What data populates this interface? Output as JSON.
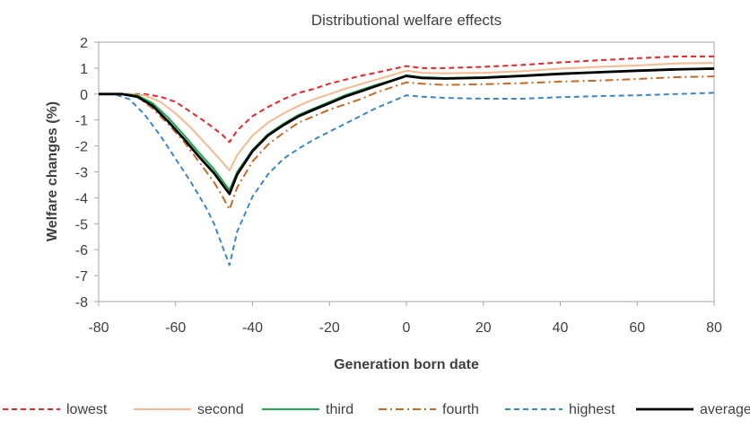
{
  "chart_data": {
    "type": "line",
    "title": "Distributional welfare effects",
    "xlabel": "Generation born date",
    "ylabel": "Welfare changes (%)",
    "xlim": [
      -80,
      80
    ],
    "ylim": [
      -8,
      2
    ],
    "x_ticks": [
      -80,
      -60,
      -40,
      -20,
      0,
      20,
      40,
      60,
      80
    ],
    "y_ticks": [
      -8,
      -7,
      -6,
      -5,
      -4,
      -3,
      -2,
      -1,
      0,
      1,
      2
    ],
    "grid": false,
    "legend_position": "bottom",
    "series": [
      {
        "name": "lowest",
        "color": "#e8262a",
        "style": "dashed",
        "points": [
          [
            -80,
            0
          ],
          [
            -72,
            0
          ],
          [
            -68,
            0
          ],
          [
            -64,
            -0.1
          ],
          [
            -60,
            -0.3
          ],
          [
            -56,
            -0.7
          ],
          [
            -52,
            -1.1
          ],
          [
            -48,
            -1.55
          ],
          [
            -46,
            -1.85
          ],
          [
            -44,
            -1.4
          ],
          [
            -40,
            -0.85
          ],
          [
            -36,
            -0.5
          ],
          [
            -32,
            -0.2
          ],
          [
            -28,
            0.05
          ],
          [
            -24,
            0.2
          ],
          [
            -20,
            0.4
          ],
          [
            -16,
            0.55
          ],
          [
            -12,
            0.7
          ],
          [
            -8,
            0.82
          ],
          [
            -4,
            0.95
          ],
          [
            0,
            1.08
          ],
          [
            4,
            1.0
          ],
          [
            10,
            1.0
          ],
          [
            20,
            1.05
          ],
          [
            30,
            1.12
          ],
          [
            40,
            1.22
          ],
          [
            50,
            1.3
          ],
          [
            60,
            1.38
          ],
          [
            70,
            1.45
          ],
          [
            80,
            1.45
          ]
        ]
      },
      {
        "name": "second",
        "color": "#f7b98f",
        "style": "solid",
        "points": [
          [
            -80,
            0
          ],
          [
            -72,
            0
          ],
          [
            -68,
            -0.05
          ],
          [
            -64,
            -0.3
          ],
          [
            -60,
            -0.75
          ],
          [
            -56,
            -1.3
          ],
          [
            -52,
            -1.95
          ],
          [
            -48,
            -2.6
          ],
          [
            -46,
            -2.95
          ],
          [
            -44,
            -2.35
          ],
          [
            -40,
            -1.6
          ],
          [
            -36,
            -1.1
          ],
          [
            -32,
            -0.75
          ],
          [
            -28,
            -0.45
          ],
          [
            -24,
            -0.2
          ],
          [
            -20,
            0.0
          ],
          [
            -16,
            0.2
          ],
          [
            -12,
            0.38
          ],
          [
            -8,
            0.55
          ],
          [
            -4,
            0.72
          ],
          [
            0,
            0.9
          ],
          [
            4,
            0.82
          ],
          [
            10,
            0.8
          ],
          [
            20,
            0.82
          ],
          [
            30,
            0.88
          ],
          [
            40,
            0.98
          ],
          [
            50,
            1.05
          ],
          [
            60,
            1.1
          ],
          [
            70,
            1.18
          ],
          [
            80,
            1.2
          ]
        ]
      },
      {
        "name": "third",
        "color": "#1fa84a",
        "style": "solid",
        "points": [
          [
            -80,
            0
          ],
          [
            -74,
            0
          ],
          [
            -70,
            -0.05
          ],
          [
            -66,
            -0.35
          ],
          [
            -62,
            -0.9
          ],
          [
            -58,
            -1.55
          ],
          [
            -54,
            -2.25
          ],
          [
            -50,
            -2.9
          ],
          [
            -48,
            -3.3
          ],
          [
            -46,
            -3.7
          ],
          [
            -44,
            -3.0
          ],
          [
            -40,
            -2.15
          ],
          [
            -36,
            -1.55
          ],
          [
            -32,
            -1.15
          ],
          [
            -28,
            -0.8
          ],
          [
            -24,
            -0.55
          ],
          [
            -20,
            -0.3
          ],
          [
            -16,
            -0.05
          ],
          [
            -12,
            0.15
          ],
          [
            -8,
            0.35
          ],
          [
            -4,
            0.52
          ],
          [
            0,
            0.72
          ],
          [
            4,
            0.65
          ],
          [
            10,
            0.62
          ],
          [
            20,
            0.65
          ],
          [
            30,
            0.72
          ],
          [
            40,
            0.8
          ],
          [
            50,
            0.85
          ],
          [
            60,
            0.9
          ],
          [
            70,
            0.95
          ],
          [
            80,
            1.0
          ]
        ]
      },
      {
        "name": "fourth",
        "color": "#c56a26",
        "style": "dashdot",
        "points": [
          [
            -80,
            0
          ],
          [
            -74,
            0
          ],
          [
            -70,
            -0.1
          ],
          [
            -66,
            -0.55
          ],
          [
            -62,
            -1.15
          ],
          [
            -58,
            -1.8
          ],
          [
            -54,
            -2.6
          ],
          [
            -50,
            -3.4
          ],
          [
            -48,
            -3.9
          ],
          [
            -46,
            -4.45
          ],
          [
            -44,
            -3.6
          ],
          [
            -40,
            -2.6
          ],
          [
            -36,
            -1.95
          ],
          [
            -32,
            -1.5
          ],
          [
            -28,
            -1.1
          ],
          [
            -24,
            -0.85
          ],
          [
            -20,
            -0.6
          ],
          [
            -16,
            -0.4
          ],
          [
            -12,
            -0.2
          ],
          [
            -8,
            0.05
          ],
          [
            -4,
            0.25
          ],
          [
            0,
            0.45
          ],
          [
            4,
            0.4
          ],
          [
            10,
            0.35
          ],
          [
            20,
            0.38
          ],
          [
            30,
            0.42
          ],
          [
            40,
            0.48
          ],
          [
            50,
            0.52
          ],
          [
            60,
            0.58
          ],
          [
            70,
            0.65
          ],
          [
            80,
            0.68
          ]
        ]
      },
      {
        "name": "highest",
        "color": "#3d86c6",
        "style": "dashed",
        "points": [
          [
            -80,
            0
          ],
          [
            -76,
            0
          ],
          [
            -72,
            -0.2
          ],
          [
            -68,
            -0.8
          ],
          [
            -64,
            -1.6
          ],
          [
            -60,
            -2.5
          ],
          [
            -56,
            -3.4
          ],
          [
            -52,
            -4.4
          ],
          [
            -50,
            -5.0
          ],
          [
            -48,
            -5.8
          ],
          [
            -46,
            -6.6
          ],
          [
            -44,
            -5.3
          ],
          [
            -40,
            -3.95
          ],
          [
            -36,
            -3.1
          ],
          [
            -32,
            -2.5
          ],
          [
            -28,
            -2.1
          ],
          [
            -24,
            -1.75
          ],
          [
            -20,
            -1.45
          ],
          [
            -16,
            -1.15
          ],
          [
            -12,
            -0.85
          ],
          [
            -8,
            -0.55
          ],
          [
            -4,
            -0.3
          ],
          [
            0,
            -0.05
          ],
          [
            4,
            -0.1
          ],
          [
            10,
            -0.15
          ],
          [
            20,
            -0.18
          ],
          [
            30,
            -0.18
          ],
          [
            40,
            -0.12
          ],
          [
            50,
            -0.08
          ],
          [
            60,
            -0.05
          ],
          [
            70,
            0.0
          ],
          [
            80,
            0.05
          ]
        ]
      },
      {
        "name": "average",
        "color": "#000000",
        "style": "solid-thick",
        "points": [
          [
            -80,
            0
          ],
          [
            -74,
            0
          ],
          [
            -70,
            -0.1
          ],
          [
            -66,
            -0.45
          ],
          [
            -62,
            -1.05
          ],
          [
            -58,
            -1.7
          ],
          [
            -54,
            -2.4
          ],
          [
            -50,
            -3.05
          ],
          [
            -48,
            -3.45
          ],
          [
            -46,
            -3.85
          ],
          [
            -44,
            -3.1
          ],
          [
            -40,
            -2.2
          ],
          [
            -36,
            -1.6
          ],
          [
            -32,
            -1.2
          ],
          [
            -28,
            -0.85
          ],
          [
            -24,
            -0.6
          ],
          [
            -20,
            -0.35
          ],
          [
            -16,
            -0.1
          ],
          [
            -12,
            0.1
          ],
          [
            -8,
            0.3
          ],
          [
            -4,
            0.5
          ],
          [
            0,
            0.7
          ],
          [
            4,
            0.62
          ],
          [
            10,
            0.6
          ],
          [
            20,
            0.63
          ],
          [
            30,
            0.7
          ],
          [
            40,
            0.78
          ],
          [
            50,
            0.84
          ],
          [
            60,
            0.9
          ],
          [
            70,
            0.95
          ],
          [
            80,
            0.98
          ]
        ]
      }
    ]
  }
}
